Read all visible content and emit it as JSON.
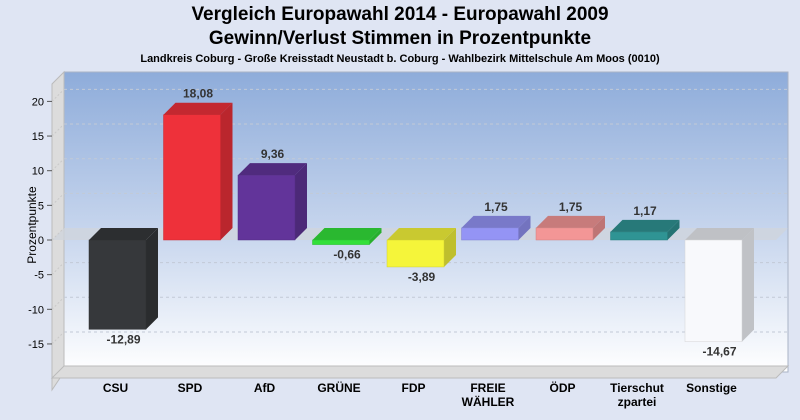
{
  "chart_data": {
    "type": "bar",
    "style": "3d",
    "title": "Vergleich Europawahl 2014 - Europawahl 2009",
    "subtitle": "Gewinn/Verlust Stimmen in Prozentpunkte",
    "caption": "Landkreis Coburg - Große Kreisstadt Neustadt b. Coburg - Wahlbezirk Mittelschule Am Moos (0010)",
    "xlabel": "",
    "ylabel": "Prozentpunkte",
    "ylim": [
      -19,
      23
    ],
    "yticks": [
      20,
      15,
      10,
      5,
      0,
      -5,
      -10,
      -15
    ],
    "grid": true,
    "categories": [
      "CSU",
      "SPD",
      "AfD",
      "GRÜNE",
      "FDP",
      "FREIE WÄHLER",
      "ÖDP",
      "Tierschutzpartei",
      "Sonstige"
    ],
    "category_labels": [
      [
        "CSU"
      ],
      [
        "SPD"
      ],
      [
        "AfD"
      ],
      [
        "GRÜNE"
      ],
      [
        "FDP"
      ],
      [
        "FREIE",
        "WÄHLER"
      ],
      [
        "ÖDP"
      ],
      [
        "Tierschut",
        "zpartei"
      ],
      [
        "Sonstige"
      ]
    ],
    "values": [
      -12.89,
      18.08,
      9.36,
      -0.66,
      -3.89,
      1.75,
      1.75,
      1.17,
      -14.67
    ],
    "value_labels": [
      "-12,89",
      "18,08",
      "9,36",
      "-0,66",
      "-3,89",
      "1,75",
      "1,75",
      "1,17",
      "-14,67"
    ],
    "colors": [
      "#36383b",
      "#ee313a",
      "#62349a",
      "#33e03a",
      "#f5f53a",
      "#9494f5",
      "#f39696",
      "#2f9494",
      "#f8f9fc"
    ]
  }
}
